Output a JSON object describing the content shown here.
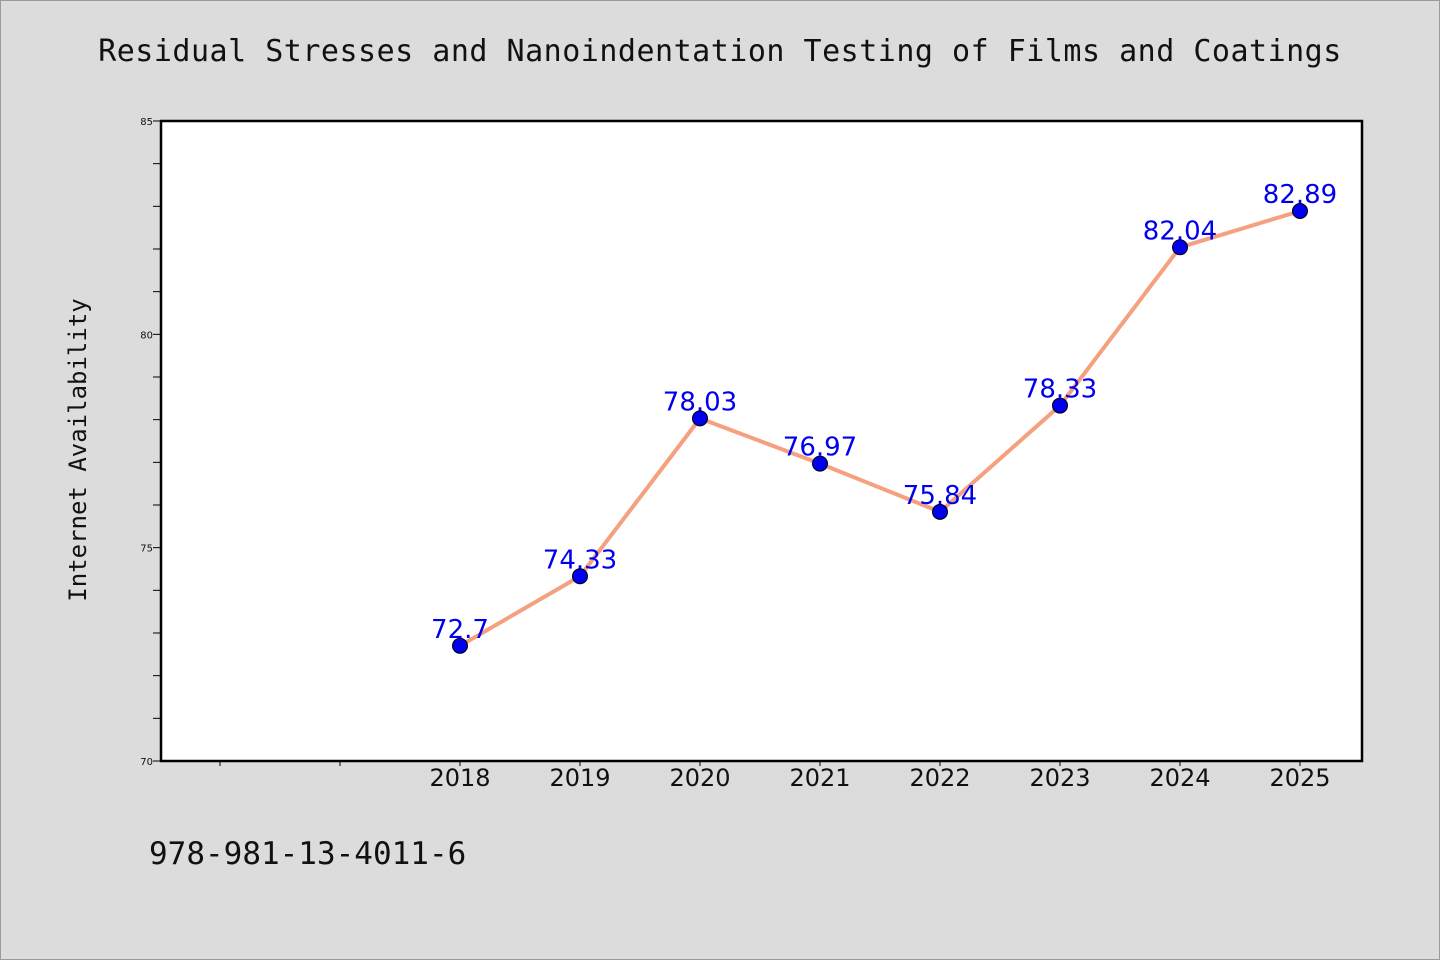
{
  "chart_data": {
    "type": "line",
    "title": "Residual Stresses and Nanoindentation Testing of Films and Coatings",
    "ylabel": "Internet Availability",
    "xlabel": "",
    "x": [
      "2018",
      "2019",
      "2020",
      "2021",
      "2022",
      "2023",
      "2024",
      "2025"
    ],
    "series": [
      {
        "values": [
          72.7,
          74.33,
          78.03,
          76.97,
          75.84,
          78.33,
          82.04,
          82.89
        ]
      }
    ],
    "data_labels": [
      "72.7",
      "74.33",
      "78.03",
      "76.97",
      "75.84",
      "78.33",
      "82.04",
      "82.89"
    ],
    "ylim": [
      70,
      85
    ],
    "yticks": [
      70,
      75,
      80,
      85
    ],
    "ytick_labels": [
      "70",
      "75",
      "80",
      "85"
    ],
    "grid": false,
    "line_color": "#f5a07e",
    "marker_color": "#0000ee",
    "label_color": "#0000ee"
  },
  "footer": {
    "isbn": "978-981-13-4011-6"
  }
}
